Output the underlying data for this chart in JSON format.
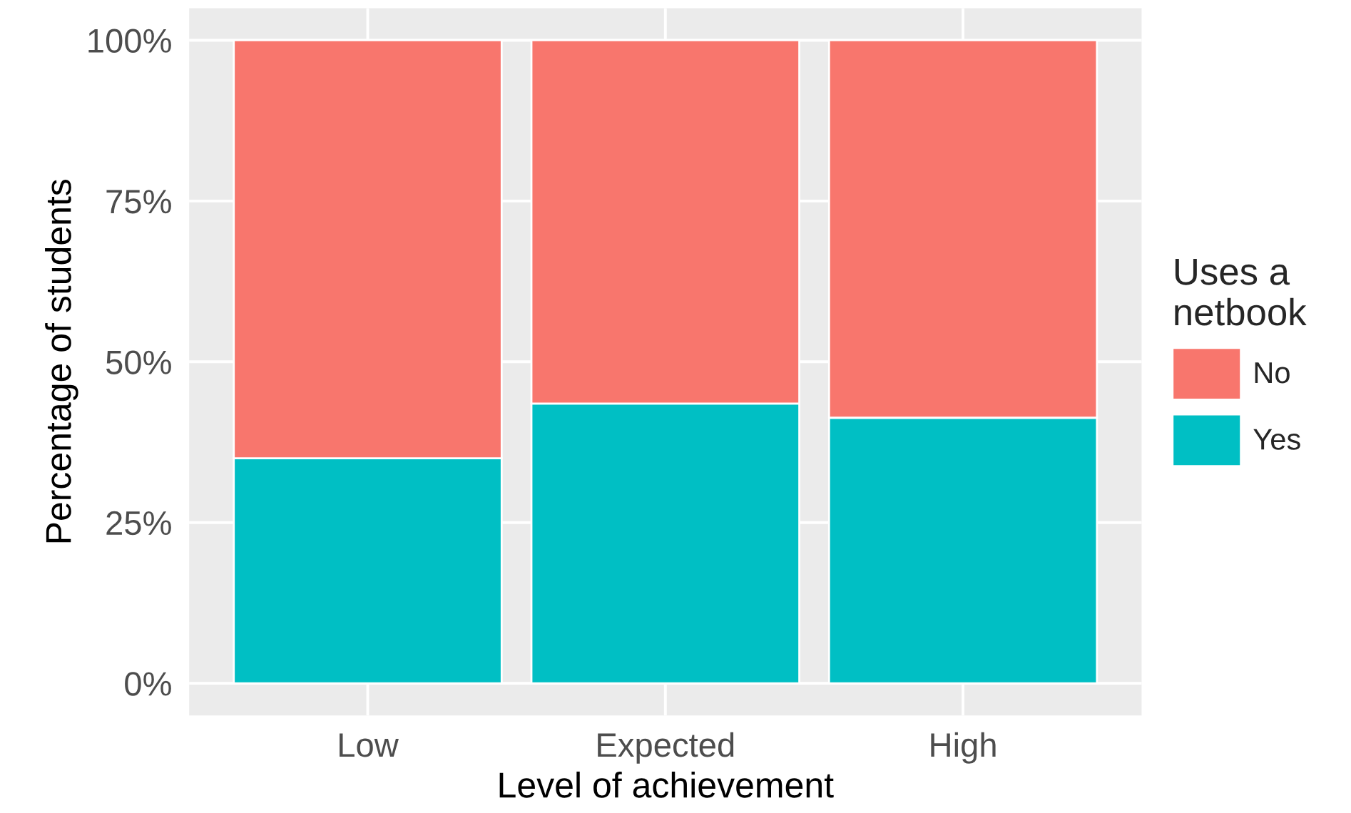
{
  "chart_data": {
    "type": "bar",
    "stacked": true,
    "categories": [
      "Low",
      "Expected",
      "High"
    ],
    "xlabel": "Level of achievement",
    "ylabel": "Percentage of students",
    "legend_title": "Uses a\nnetbook",
    "series": [
      {
        "name": "Yes",
        "color": "#00bfc4",
        "values": [
          35.0,
          43.5,
          41.3
        ]
      },
      {
        "name": "No",
        "color": "#f8766d",
        "values": [
          65.0,
          56.5,
          58.7
        ]
      }
    ],
    "ylim": [
      -5,
      105
    ],
    "yticks": [
      {
        "value": 0,
        "label": "0%"
      },
      {
        "value": 25,
        "label": "25%"
      },
      {
        "value": 50,
        "label": "50%"
      },
      {
        "value": 75,
        "label": "75%"
      },
      {
        "value": 100,
        "label": "100%"
      }
    ],
    "grid": true,
    "legend": "right"
  }
}
